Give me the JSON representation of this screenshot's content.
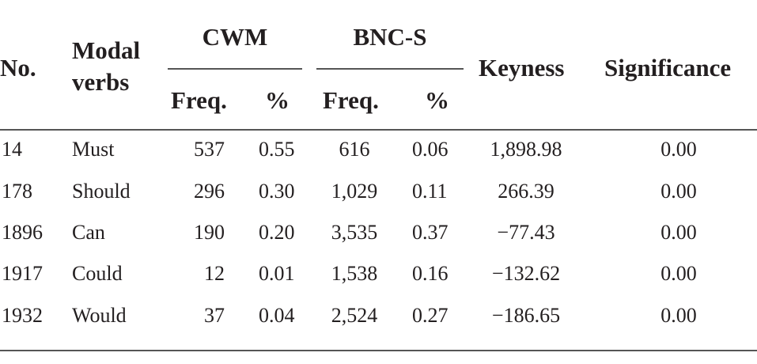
{
  "header": {
    "no": "No.",
    "modal_line1": "Modal",
    "modal_line2": "verbs",
    "cwm": "CWM",
    "bncs": "BNC-S",
    "freq": "Freq.",
    "pct": "%",
    "keyness": "Keyness",
    "significance": "Significance"
  },
  "rows": [
    {
      "no": "14",
      "verb": "Must",
      "cwm_freq": "537",
      "cwm_pct": "0.55",
      "bnc_freq": "616",
      "bnc_pct": "0.06",
      "keyness": "1,898.98",
      "sig": "0.00"
    },
    {
      "no": "178",
      "verb": "Should",
      "cwm_freq": "296",
      "cwm_pct": "0.30",
      "bnc_freq": "1,029",
      "bnc_pct": "0.11",
      "keyness": "266.39",
      "sig": "0.00"
    },
    {
      "no": "1896",
      "verb": "Can",
      "cwm_freq": "190",
      "cwm_pct": "0.20",
      "bnc_freq": "3,535",
      "bnc_pct": "0.37",
      "keyness": "−77.43",
      "sig": "0.00"
    },
    {
      "no": "1917",
      "verb": "Could",
      "cwm_freq": "12",
      "cwm_pct": "0.01",
      "bnc_freq": "1,538",
      "bnc_pct": "0.16",
      "keyness": "−132.62",
      "sig": "0.00"
    },
    {
      "no": "1932",
      "verb": "Would",
      "cwm_freq": "37",
      "cwm_pct": "0.04",
      "bnc_freq": "2,524",
      "bnc_pct": "0.27",
      "keyness": "−186.65",
      "sig": "0.00"
    }
  ]
}
